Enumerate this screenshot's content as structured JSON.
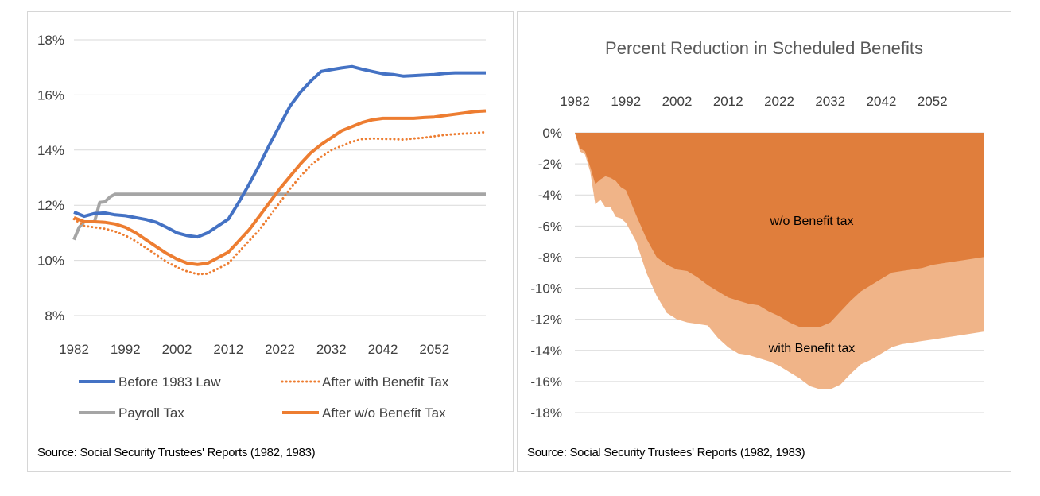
{
  "chart_data": [
    {
      "type": "line",
      "title": "",
      "xlabel": "",
      "ylabel": "",
      "xlim": [
        1982,
        2062
      ],
      "ylim": [
        8,
        18
      ],
      "yticks": [
        "8%",
        "10%",
        "12%",
        "14%",
        "16%",
        "18%"
      ],
      "xticks": [
        "1982",
        "1992",
        "2002",
        "2012",
        "2022",
        "2032",
        "2042",
        "2052"
      ],
      "grid": true,
      "legend_position": "bottom",
      "series": [
        {
          "name": "Before 1983 Law",
          "color": "#4472C4",
          "style": "solid",
          "x": [
            1982,
            1984,
            1986,
            1988,
            1990,
            1992,
            1994,
            1996,
            1998,
            2000,
            2002,
            2004,
            2006,
            2008,
            2010,
            2012,
            2014,
            2016,
            2018,
            2020,
            2022,
            2024,
            2026,
            2028,
            2030,
            2032,
            2034,
            2036,
            2038,
            2040,
            2042,
            2044,
            2046,
            2048,
            2050,
            2052,
            2054,
            2056,
            2058,
            2060,
            2062
          ],
          "values": [
            11.75,
            11.6,
            11.7,
            11.72,
            11.65,
            11.62,
            11.55,
            11.48,
            11.38,
            11.2,
            11.0,
            10.9,
            10.85,
            11.0,
            11.25,
            11.5,
            12.1,
            12.75,
            13.45,
            14.2,
            14.9,
            15.6,
            16.1,
            16.5,
            16.85,
            16.92,
            16.98,
            17.03,
            16.93,
            16.85,
            16.77,
            16.74,
            16.68,
            16.7,
            16.72,
            16.74,
            16.78,
            16.8,
            16.8,
            16.8,
            16.8
          ]
        },
        {
          "name": "After with Benefit Tax",
          "color": "#ED7D31",
          "style": "dotted",
          "x": [
            1982,
            1984,
            1986,
            1988,
            1990,
            1992,
            1994,
            1996,
            1998,
            2000,
            2002,
            2004,
            2006,
            2008,
            2010,
            2012,
            2014,
            2016,
            2018,
            2020,
            2022,
            2024,
            2026,
            2028,
            2030,
            2032,
            2034,
            2036,
            2038,
            2040,
            2042,
            2044,
            2046,
            2048,
            2050,
            2052,
            2054,
            2056,
            2058,
            2060,
            2062
          ],
          "values": [
            11.5,
            11.25,
            11.2,
            11.15,
            11.05,
            10.9,
            10.7,
            10.45,
            10.2,
            9.95,
            9.75,
            9.6,
            9.5,
            9.52,
            9.7,
            9.9,
            10.3,
            10.7,
            11.1,
            11.6,
            12.1,
            12.6,
            13.05,
            13.45,
            13.75,
            14.0,
            14.15,
            14.3,
            14.4,
            14.42,
            14.4,
            14.4,
            14.38,
            14.42,
            14.45,
            14.5,
            14.55,
            14.58,
            14.6,
            14.62,
            14.65
          ]
        },
        {
          "name": "Payroll Tax",
          "color": "#A5A5A5",
          "style": "solid",
          "x": [
            1982,
            1983,
            1984,
            1985,
            1986,
            1987,
            1988,
            1989,
            1990,
            2000,
            2010,
            2020,
            2030,
            2040,
            2050,
            2062
          ],
          "values": [
            10.75,
            11.2,
            11.4,
            11.4,
            11.4,
            12.1,
            12.12,
            12.3,
            12.4,
            12.4,
            12.4,
            12.4,
            12.4,
            12.4,
            12.4,
            12.4
          ]
        },
        {
          "name": "After w/o Benefit Tax",
          "color": "#ED7D31",
          "style": "solid",
          "x": [
            1982,
            1984,
            1986,
            1988,
            1990,
            1992,
            1994,
            1996,
            1998,
            2000,
            2002,
            2004,
            2006,
            2008,
            2010,
            2012,
            2014,
            2016,
            2018,
            2020,
            2022,
            2024,
            2026,
            2028,
            2030,
            2032,
            2034,
            2036,
            2038,
            2040,
            2042,
            2044,
            2046,
            2048,
            2050,
            2052,
            2054,
            2056,
            2058,
            2060,
            2062
          ],
          "values": [
            11.55,
            11.4,
            11.4,
            11.38,
            11.32,
            11.2,
            11.0,
            10.75,
            10.5,
            10.25,
            10.05,
            9.9,
            9.85,
            9.9,
            10.1,
            10.3,
            10.7,
            11.1,
            11.6,
            12.1,
            12.6,
            13.05,
            13.5,
            13.9,
            14.2,
            14.45,
            14.7,
            14.85,
            15.0,
            15.1,
            15.15,
            15.15,
            15.15,
            15.15,
            15.18,
            15.2,
            15.25,
            15.3,
            15.35,
            15.4,
            15.42
          ]
        }
      ],
      "source": "Source: Social Security Trustees' Reports (1982, 1983)"
    },
    {
      "type": "area",
      "title": "Percent Reduction in Scheduled Benefits",
      "xlabel": "",
      "ylabel": "",
      "xlim": [
        1982,
        2062
      ],
      "ylim": [
        -18,
        0
      ],
      "yticks": [
        "0%",
        "-2%",
        "-4%",
        "-6%",
        "-8%",
        "-10%",
        "-12%",
        "-14%",
        "-16%",
        "-18%"
      ],
      "xticks": [
        "1982",
        "1992",
        "2002",
        "2012",
        "2022",
        "2032",
        "2042",
        "2052"
      ],
      "grid": true,
      "legend_position": "none",
      "series": [
        {
          "name": "with Benefit tax",
          "color": "#F0B488",
          "label": "with Benefit tax",
          "x": [
            1982,
            1983,
            1984,
            1985,
            1986,
            1987,
            1988,
            1989,
            1990,
            1991,
            1992,
            1994,
            1996,
            1998,
            2000,
            2002,
            2004,
            2006,
            2008,
            2010,
            2012,
            2014,
            2016,
            2018,
            2020,
            2022,
            2024,
            2026,
            2028,
            2030,
            2032,
            2034,
            2036,
            2038,
            2040,
            2042,
            2044,
            2046,
            2048,
            2050,
            2052,
            2054,
            2056,
            2058,
            2060,
            2062
          ],
          "values": [
            0,
            -1.2,
            -1.4,
            -2.5,
            -4.6,
            -4.3,
            -4.8,
            -4.8,
            -5.4,
            -5.5,
            -5.8,
            -7.0,
            -9.0,
            -10.5,
            -11.6,
            -12.0,
            -12.2,
            -12.3,
            -12.4,
            -13.2,
            -13.8,
            -14.2,
            -14.3,
            -14.5,
            -14.7,
            -15.0,
            -15.4,
            -15.8,
            -16.3,
            -16.5,
            -16.5,
            -16.2,
            -15.5,
            -14.9,
            -14.6,
            -14.2,
            -13.8,
            -13.6,
            -13.5,
            -13.4,
            -13.3,
            -13.2,
            -13.1,
            -13.0,
            -12.9,
            -12.8
          ]
        },
        {
          "name": "w/o Benefit tax",
          "color": "#E07E3C",
          "label": "w/o Benefit tax",
          "x": [
            1982,
            1983,
            1984,
            1985,
            1986,
            1987,
            1988,
            1989,
            1990,
            1991,
            1992,
            1994,
            1996,
            1998,
            2000,
            2002,
            2004,
            2006,
            2008,
            2010,
            2012,
            2014,
            2016,
            2018,
            2020,
            2022,
            2024,
            2026,
            2028,
            2030,
            2032,
            2034,
            2036,
            2038,
            2040,
            2042,
            2044,
            2046,
            2048,
            2050,
            2052,
            2054,
            2056,
            2058,
            2060,
            2062
          ],
          "values": [
            0,
            -1.0,
            -1.2,
            -2.2,
            -3.3,
            -3.0,
            -2.8,
            -2.9,
            -3.1,
            -3.5,
            -3.7,
            -5.3,
            -6.8,
            -8.0,
            -8.5,
            -8.8,
            -8.9,
            -9.3,
            -9.8,
            -10.2,
            -10.6,
            -10.8,
            -11.0,
            -11.1,
            -11.5,
            -11.8,
            -12.2,
            -12.5,
            -12.5,
            -12.5,
            -12.2,
            -11.5,
            -10.8,
            -10.2,
            -9.8,
            -9.4,
            -9.0,
            -8.9,
            -8.8,
            -8.7,
            -8.5,
            -8.4,
            -8.3,
            -8.2,
            -8.1,
            -8.0
          ]
        }
      ],
      "source": "Source: Social Security Trustees' Reports (1982, 1983)"
    }
  ]
}
